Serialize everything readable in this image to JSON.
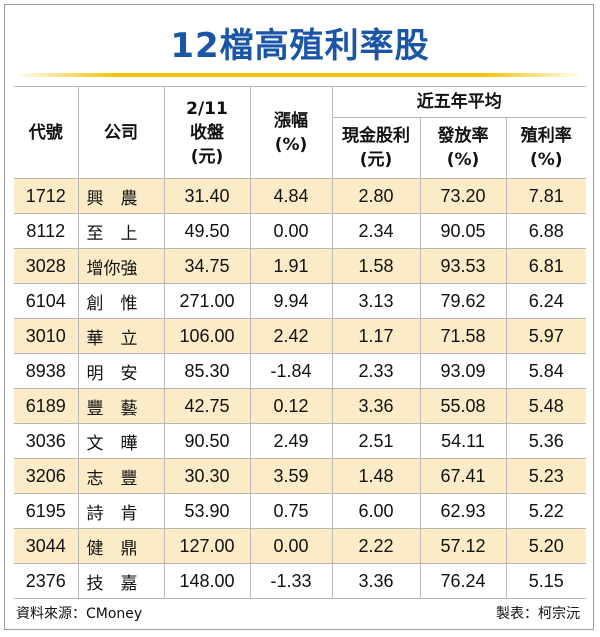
{
  "title": "12檔高殖利率股",
  "headers": {
    "code": "代號",
    "company": "公司",
    "close_l1": "2/11",
    "close_l2": "收盤",
    "close_l3": "(元)",
    "change_l1": "漲幅",
    "change_l2": "(%)",
    "group": "近五年平均",
    "cash_l1": "現金股利",
    "cash_l2": "(元)",
    "payout_l1": "發放率",
    "payout_l2": "(%)",
    "yield_l1": "殖利率",
    "yield_l2": "(%)"
  },
  "colors": {
    "title": "#1a55a6",
    "rule": "#f2c200",
    "stripe": "#fbecc7"
  },
  "rows": [
    {
      "code": "1712",
      "name": "興　農",
      "close": "31.40",
      "change": "4.84",
      "cash": "2.80",
      "payout": "73.20",
      "yield": "7.81"
    },
    {
      "code": "8112",
      "name": "至　上",
      "close": "49.50",
      "change": "0.00",
      "cash": "2.34",
      "payout": "90.05",
      "yield": "6.88"
    },
    {
      "code": "3028",
      "name": "增你強",
      "close": "34.75",
      "change": "1.91",
      "cash": "1.58",
      "payout": "93.53",
      "yield": "6.81"
    },
    {
      "code": "6104",
      "name": "創　惟",
      "close": "271.00",
      "change": "9.94",
      "cash": "3.13",
      "payout": "79.62",
      "yield": "6.24"
    },
    {
      "code": "3010",
      "name": "華　立",
      "close": "106.00",
      "change": "2.42",
      "cash": "1.17",
      "payout": "71.58",
      "yield": "5.97"
    },
    {
      "code": "8938",
      "name": "明　安",
      "close": "85.30",
      "change": "-1.84",
      "cash": "2.33",
      "payout": "93.09",
      "yield": "5.84"
    },
    {
      "code": "6189",
      "name": "豐　藝",
      "close": "42.75",
      "change": "0.12",
      "cash": "3.36",
      "payout": "55.08",
      "yield": "5.48"
    },
    {
      "code": "3036",
      "name": "文　曄",
      "close": "90.50",
      "change": "2.49",
      "cash": "2.51",
      "payout": "54.11",
      "yield": "5.36"
    },
    {
      "code": "3206",
      "name": "志　豐",
      "close": "30.30",
      "change": "3.59",
      "cash": "1.48",
      "payout": "67.41",
      "yield": "5.23"
    },
    {
      "code": "6195",
      "name": "詩　肯",
      "close": "53.90",
      "change": "0.75",
      "cash": "6.00",
      "payout": "62.93",
      "yield": "5.22"
    },
    {
      "code": "3044",
      "name": "健　鼎",
      "close": "127.00",
      "change": "0.00",
      "cash": "2.22",
      "payout": "57.12",
      "yield": "5.20"
    },
    {
      "code": "2376",
      "name": "技　嘉",
      "close": "148.00",
      "change": "-1.33",
      "cash": "3.36",
      "payout": "76.24",
      "yield": "5.15"
    }
  ],
  "footer": {
    "source": "資料來源：CMoney",
    "maker": "製表：柯宗沅"
  }
}
